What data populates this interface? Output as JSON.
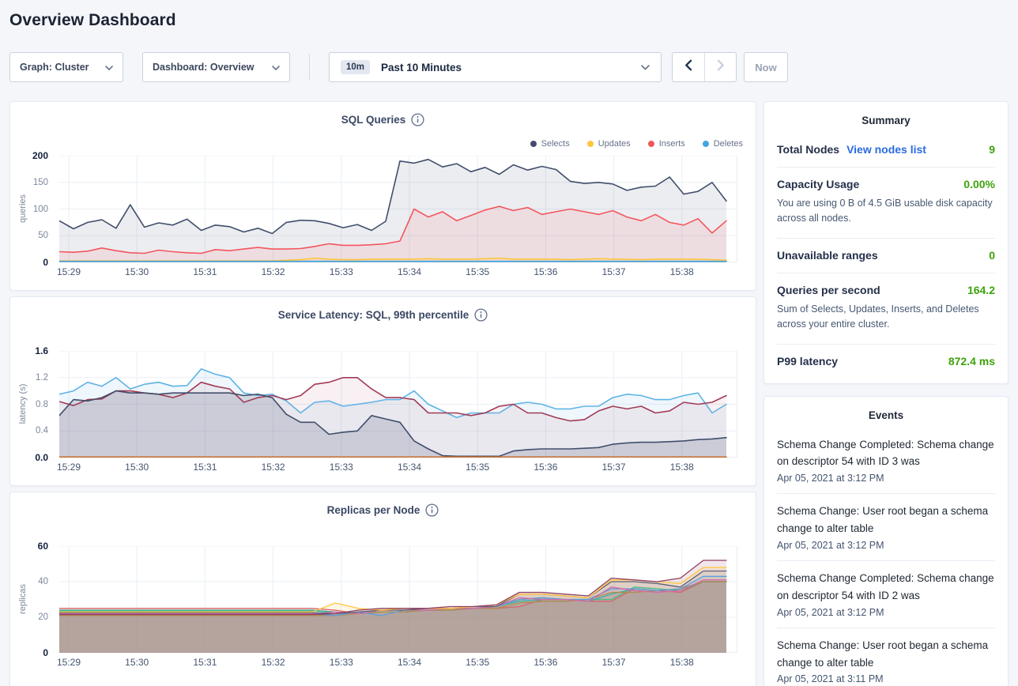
{
  "page": {
    "title": "Overview Dashboard"
  },
  "controls": {
    "graph_dropdown": "Graph: Cluster",
    "dashboard_dropdown": "Dashboard: Overview",
    "time_badge": "10m",
    "time_label": "Past 10 Minutes",
    "now_label": "Now"
  },
  "icons": {
    "dropdown_chevron": "chevron-down",
    "time_chevron": "chevron-down",
    "prev": "chevron-left",
    "next": "chevron-right",
    "chart_info": "info-circle"
  },
  "colors": {
    "link_blue": "#2A6BE2",
    "value_green": "#3DA30B",
    "selects_navy": "#414E6B",
    "updates_yellow": "#FFC53D",
    "inserts_red": "#F4565E",
    "deletes_blue": "#42A5E0",
    "page_bg": "#F4F6FA"
  },
  "summary": {
    "title": "Summary",
    "total_nodes_label": "Total Nodes",
    "view_nodes_link": "View nodes list",
    "total_nodes_value": "9",
    "capacity_label": "Capacity Usage",
    "capacity_value": "0.00%",
    "capacity_desc": "You are using 0 B of 4.5 GiB usable disk capacity across all nodes.",
    "unavailable_label": "Unavailable ranges",
    "unavailable_value": "0",
    "qps_label": "Queries per second",
    "qps_value": "164.2",
    "qps_desc": "Sum of Selects, Updates, Inserts, and Deletes across your entire cluster.",
    "p99_label": "P99 latency",
    "p99_value": "872.4 ms"
  },
  "events": {
    "title": "Events",
    "items": [
      {
        "message": "Schema Change Completed: Schema change on descriptor 54 with ID 3 was",
        "time": "Apr 05, 2021 at 3:12 PM"
      },
      {
        "message": "Schema Change: User root began a schema change to alter table",
        "time": "Apr 05, 2021 at 3:12 PM"
      },
      {
        "message": "Schema Change Completed: Schema change on descriptor 54 with ID 2 was",
        "time": "Apr 05, 2021 at 3:12 PM"
      },
      {
        "message": "Schema Change: User root began a schema change to alter table",
        "time": "Apr 05, 2021 at 3:11 PM"
      }
    ]
  },
  "chart_data": [
    {
      "type": "area",
      "title": "SQL Queries",
      "ylabel": "queries",
      "ylim": [
        0,
        200
      ],
      "y_ticks": [
        0,
        50,
        100,
        150,
        200
      ],
      "y_tick_labels": [
        "0",
        "50",
        "100",
        "150",
        "200"
      ],
      "x_ticks": [
        "15:29",
        "15:30",
        "15:31",
        "15:32",
        "15:33",
        "15:34",
        "15:35",
        "15:36",
        "15:37",
        "15:38"
      ],
      "legend": true,
      "grid": true,
      "series": [
        {
          "name": "Selects",
          "color": "#414E6B",
          "fill_opacity": 0.1,
          "values": [
            78,
            63,
            75,
            80,
            64,
            108,
            66,
            74,
            70,
            81,
            60,
            70,
            67,
            57,
            64,
            54,
            75,
            79,
            78,
            73,
            65,
            71,
            60,
            77,
            190,
            186,
            193,
            179,
            185,
            170,
            178,
            165,
            183,
            173,
            180,
            174,
            152,
            148,
            150,
            147,
            135,
            141,
            143,
            160,
            128,
            133,
            150,
            115
          ]
        },
        {
          "name": "Updates",
          "color": "#FFC53D",
          "fill_opacity": 0.12,
          "values": [
            3,
            3,
            3,
            3,
            3,
            3,
            3,
            3,
            3,
            3,
            3,
            3,
            3,
            3,
            3,
            3,
            4,
            5,
            8,
            6,
            5,
            5,
            6,
            6,
            6,
            6,
            7,
            6,
            6,
            6,
            7,
            8,
            6,
            6,
            6,
            6,
            5,
            6,
            7,
            6,
            6,
            5,
            6,
            6,
            6,
            6,
            5,
            4
          ]
        },
        {
          "name": "Inserts",
          "color": "#F4565E",
          "fill_opacity": 0.1,
          "values": [
            20,
            19,
            21,
            27,
            22,
            18,
            17,
            23,
            20,
            18,
            17,
            24,
            22,
            25,
            28,
            25,
            25,
            26,
            30,
            35,
            32,
            32,
            33,
            35,
            40,
            100,
            85,
            95,
            78,
            88,
            98,
            105,
            97,
            103,
            90,
            95,
            100,
            95,
            90,
            97,
            85,
            78,
            90,
            75,
            70,
            82,
            55,
            78
          ]
        },
        {
          "name": "Deletes",
          "color": "#42A5E0",
          "fill_opacity": 0.15,
          "values": [
            2,
            2,
            2,
            2,
            2,
            2,
            2,
            2,
            2,
            2,
            2,
            2,
            2,
            2,
            2,
            2,
            2,
            2,
            2,
            2,
            2,
            2,
            2,
            2,
            2,
            2,
            2,
            2,
            2,
            2,
            2,
            2,
            2,
            2,
            2,
            2,
            2,
            2,
            2,
            2,
            2,
            2,
            2,
            2,
            2,
            2,
            2,
            2
          ]
        }
      ]
    },
    {
      "type": "area",
      "title": "Service Latency: SQL, 99th percentile",
      "ylabel": "latency (s)",
      "ylim": [
        0,
        1.6
      ],
      "y_ticks": [
        0,
        0.4,
        0.8,
        1.2,
        1.6
      ],
      "y_tick_labels": [
        "0.0",
        "0.4",
        "0.8",
        "1.2",
        "1.6"
      ],
      "x_ticks": [
        "15:29",
        "15:30",
        "15:31",
        "15:32",
        "15:33",
        "15:34",
        "15:35",
        "15:36",
        "15:37",
        "15:38"
      ],
      "legend": false,
      "grid": true,
      "series": [
        {
          "color": "#5FB3E5",
          "fill_opacity": 0.1,
          "values": [
            0.95,
            1.0,
            1.13,
            1.07,
            1.2,
            1.03,
            1.1,
            1.13,
            1.07,
            1.08,
            1.33,
            1.25,
            1.2,
            0.97,
            0.93,
            0.95,
            0.85,
            0.67,
            0.83,
            0.85,
            0.77,
            0.8,
            0.83,
            0.87,
            0.87,
            1.0,
            0.8,
            0.7,
            0.6,
            0.67,
            0.67,
            0.67,
            0.8,
            0.83,
            0.8,
            0.73,
            0.73,
            0.77,
            0.77,
            0.9,
            0.95,
            0.93,
            0.87,
            0.87,
            0.93,
            0.97,
            0.67,
            0.8
          ]
        },
        {
          "color": "#A23B57",
          "fill_opacity": 0.08,
          "values": [
            0.84,
            0.78,
            0.87,
            0.88,
            1.0,
            1.0,
            0.97,
            0.95,
            0.9,
            0.97,
            1.13,
            1.07,
            1.03,
            0.83,
            0.9,
            0.93,
            0.87,
            0.93,
            1.1,
            1.13,
            1.2,
            1.2,
            1.03,
            0.9,
            0.9,
            0.87,
            0.67,
            0.67,
            0.67,
            0.63,
            0.67,
            0.77,
            0.8,
            0.67,
            0.67,
            0.6,
            0.55,
            0.57,
            0.7,
            0.77,
            0.73,
            0.77,
            0.67,
            0.7,
            0.83,
            0.8,
            0.83,
            0.93
          ]
        },
        {
          "color": "#414E6B",
          "fill_opacity": 0.18,
          "values": [
            0.63,
            0.87,
            0.85,
            0.9,
            1.0,
            0.97,
            0.97,
            0.95,
            0.97,
            0.97,
            0.97,
            0.97,
            0.97,
            0.93,
            0.95,
            0.9,
            0.65,
            0.53,
            0.53,
            0.35,
            0.38,
            0.4,
            0.63,
            0.58,
            0.53,
            0.25,
            0.13,
            0.03,
            0.02,
            0.02,
            0.02,
            0.02,
            0.1,
            0.12,
            0.13,
            0.13,
            0.13,
            0.14,
            0.15,
            0.2,
            0.22,
            0.23,
            0.23,
            0.24,
            0.25,
            0.27,
            0.28,
            0.3
          ]
        },
        {
          "color": "#C87438",
          "fill_opacity": 0,
          "values": [
            0.01,
            0.01,
            0.01,
            0.01,
            0.01,
            0.01,
            0.01,
            0.01,
            0.01,
            0.01,
            0.01,
            0.01,
            0.01,
            0.01,
            0.01,
            0.01,
            0.01,
            0.01,
            0.01,
            0.01,
            0.01,
            0.01,
            0.01,
            0.01,
            0.01,
            0.01,
            0.01,
            0.01,
            0.01,
            0.01,
            0.01,
            0.01,
            0.01,
            0.01,
            0.01,
            0.01,
            0.01,
            0.01,
            0.01,
            0.01,
            0.01,
            0.01,
            0.01,
            0.01,
            0.01,
            0.01,
            0.01,
            0.01
          ]
        }
      ]
    },
    {
      "type": "area",
      "title": "Replicas per Node",
      "ylabel": "replicas",
      "ylim": [
        0,
        60
      ],
      "y_ticks": [
        0,
        20,
        40,
        60
      ],
      "y_tick_labels": [
        "0",
        "20",
        "40",
        "60"
      ],
      "x_ticks": [
        "15:29",
        "15:30",
        "15:31",
        "15:32",
        "15:33",
        "15:34",
        "15:35",
        "15:36",
        "15:37",
        "15:38"
      ],
      "legend": false,
      "grid": true,
      "series": [
        {
          "color": "#D4646C",
          "fill_opacity": 0.13,
          "values": [
            25,
            25,
            25,
            25,
            25,
            25,
            25,
            25,
            25,
            25,
            25,
            25,
            24,
            22,
            23,
            23,
            24,
            24,
            25,
            25,
            26,
            30,
            30,
            29,
            29,
            36,
            35,
            34,
            40,
            40
          ]
        },
        {
          "color": "#4CB784",
          "fill_opacity": 0.13,
          "values": [
            24,
            24,
            24,
            24,
            24,
            24,
            24,
            24,
            24,
            24,
            24,
            24,
            23,
            22,
            23,
            23,
            24,
            24,
            25,
            26,
            30,
            31,
            30,
            30,
            30,
            37,
            36,
            35,
            40,
            40
          ]
        },
        {
          "color": "#3AAFA6",
          "fill_opacity": 0.13,
          "values": [
            23.5,
            23.5,
            23.5,
            23.5,
            23.5,
            23.5,
            23.5,
            23.5,
            23.5,
            23.5,
            23.5,
            23.5,
            23,
            22,
            23,
            23,
            24,
            25,
            25,
            26,
            29,
            30,
            30,
            29,
            33,
            36,
            35,
            36,
            40,
            40
          ]
        },
        {
          "color": "#B08A4E",
          "fill_opacity": 0.13,
          "values": [
            21,
            21,
            21,
            21,
            21,
            21,
            21,
            21,
            21,
            21,
            21,
            21,
            21,
            22,
            23,
            23,
            24,
            24,
            25,
            25,
            28,
            29,
            29,
            30,
            34,
            34,
            35,
            36,
            40,
            40
          ]
        },
        {
          "color": "#5B9FD9",
          "fill_opacity": 0.13,
          "values": [
            22,
            22,
            22,
            22,
            22,
            22,
            22,
            22,
            22,
            22,
            22,
            22,
            21,
            23,
            21,
            24,
            25,
            25,
            25,
            26,
            30,
            31,
            30,
            30,
            36,
            36,
            35,
            36,
            43,
            43
          ]
        },
        {
          "color": "#D56AA8",
          "fill_opacity": 0.13,
          "values": [
            22,
            22,
            22,
            22,
            22,
            22,
            22,
            22,
            22,
            22,
            22,
            22,
            23,
            22,
            24,
            24,
            24,
            25,
            25,
            26,
            31,
            30,
            30,
            29,
            37,
            35,
            34,
            35,
            41,
            41
          ]
        },
        {
          "color": "#5A6273",
          "fill_opacity": 0.13,
          "values": [
            22.5,
            22.5,
            22.5,
            22.5,
            22.5,
            22.5,
            22.5,
            22.5,
            22.5,
            22.5,
            22.5,
            22.5,
            22,
            23,
            24,
            24,
            25,
            25,
            26,
            26,
            33,
            33,
            32,
            31,
            40,
            40,
            39,
            37,
            46,
            46
          ]
        },
        {
          "color": "#FFC53D",
          "fill_opacity": 0.13,
          "values": [
            23,
            23,
            23,
            23,
            23,
            23,
            23,
            23,
            23,
            23,
            23,
            23,
            28,
            25,
            24,
            25,
            25,
            25,
            26,
            27,
            33,
            33,
            32,
            31,
            41,
            41,
            40,
            39,
            48,
            48
          ]
        },
        {
          "color": "#8F3E63",
          "fill_opacity": 0.13,
          "values": [
            21.5,
            21.5,
            21.5,
            21.5,
            21.5,
            21.5,
            21.5,
            21.5,
            21.5,
            21.5,
            21.5,
            21.5,
            22,
            24,
            25,
            25,
            25,
            26,
            26,
            27,
            34,
            34,
            33,
            32,
            42,
            41,
            40,
            42,
            52,
            52
          ]
        }
      ]
    }
  ]
}
